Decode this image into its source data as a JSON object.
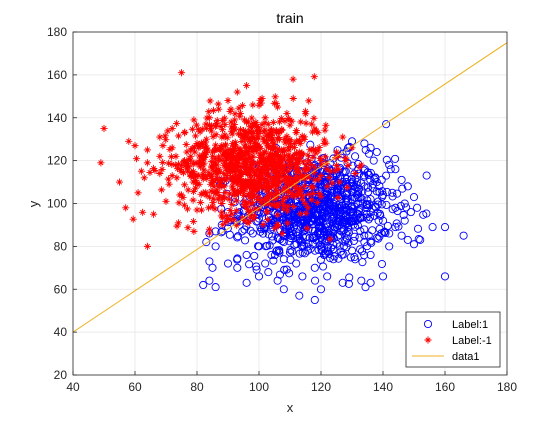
{
  "chart_data": {
    "type": "scatter",
    "title": "train",
    "xlabel": "x",
    "ylabel": "y",
    "xlim": [
      40,
      180
    ],
    "ylim": [
      20,
      180
    ],
    "x_ticks": [
      40,
      60,
      80,
      100,
      120,
      140,
      160,
      180
    ],
    "y_ticks": [
      20,
      40,
      60,
      80,
      100,
      120,
      140,
      160,
      180
    ],
    "x_tick_labels": [
      "40",
      "60",
      "80",
      "100",
      "120",
      "140",
      "160",
      "180"
    ],
    "y_tick_labels": [
      "20",
      "40",
      "60",
      "80",
      "100",
      "120",
      "140",
      "160",
      "180"
    ],
    "grid": true,
    "legend_position": "bottom-right",
    "series": [
      {
        "name": "Label:1",
        "type": "scatter",
        "marker": "circle",
        "color": "#0000ff",
        "count": 1000,
        "center": [
          118,
          97
        ],
        "spread": [
          12,
          12
        ],
        "extent": {
          "x": [
            82,
            166
          ],
          "y": [
            54,
            137
          ]
        },
        "points": [
          [
            141,
            137
          ],
          [
            130,
            129
          ],
          [
            134,
            128
          ],
          [
            136,
            126
          ],
          [
            138,
            124
          ],
          [
            131,
            122
          ],
          [
            137,
            120
          ],
          [
            142,
            118
          ],
          [
            144,
            116
          ],
          [
            141,
            113
          ],
          [
            146,
            111
          ],
          [
            148,
            108
          ],
          [
            143,
            105
          ],
          [
            150,
            103
          ],
          [
            147,
            100
          ],
          [
            151,
            98
          ],
          [
            149,
            96
          ],
          [
            147,
            92
          ],
          [
            144,
            89
          ],
          [
            142,
            86
          ],
          [
            138,
            84
          ],
          [
            146,
            85
          ],
          [
            148,
            83
          ],
          [
            150,
            81
          ],
          [
            152,
            83
          ],
          [
            156,
            89
          ],
          [
            160,
            89
          ],
          [
            166,
            85
          ],
          [
            160,
            66
          ],
          [
            99,
            109
          ],
          [
            95,
            100
          ],
          [
            90,
            96
          ],
          [
            88,
            90
          ],
          [
            86,
            87
          ],
          [
            84,
            86
          ],
          [
            83,
            82
          ],
          [
            86,
            80
          ],
          [
            84,
            73
          ],
          [
            85,
            70
          ],
          [
            90,
            72
          ],
          [
            93,
            70
          ],
          [
            84,
            64
          ],
          [
            82,
            62
          ],
          [
            86,
            61
          ],
          [
            96,
            63
          ],
          [
            103,
            68
          ],
          [
            108,
            60
          ],
          [
            113,
            57
          ],
          [
            118,
            55
          ],
          [
            120,
            60
          ],
          [
            127,
            63
          ],
          [
            133,
            64
          ],
          [
            136,
            63
          ],
          [
            140,
            66
          ],
          [
            126,
            80
          ],
          [
            121,
            76
          ],
          [
            114,
            82
          ],
          [
            108,
            86
          ],
          [
            104,
            90
          ],
          [
            100,
            93
          ],
          [
            97,
            103
          ],
          [
            112,
            112
          ],
          [
            118,
            118
          ],
          [
            124,
            121
          ],
          [
            128,
            115
          ],
          [
            122,
            110
          ],
          [
            116,
            104
          ],
          [
            110,
            100
          ],
          [
            114,
            94
          ],
          [
            120,
            92
          ],
          [
            126,
            96
          ],
          [
            132,
            100
          ],
          [
            134,
            108
          ],
          [
            128,
            104
          ],
          [
            122,
            98
          ],
          [
            116,
            88
          ],
          [
            106,
            95
          ],
          [
            102,
            105
          ],
          [
            110,
            108
          ],
          [
            124,
            88
          ],
          [
            130,
            92
          ],
          [
            136,
            96
          ],
          [
            140,
            104
          ],
          [
            138,
            110
          ],
          [
            132,
            116
          ],
          [
            126,
            108
          ],
          [
            118,
            100
          ],
          [
            112,
            96
          ],
          [
            106,
            84
          ],
          [
            100,
            80
          ],
          [
            96,
            76
          ],
          [
            104,
            76
          ],
          [
            112,
            72
          ],
          [
            118,
            70
          ],
          [
            124,
            74
          ],
          [
            130,
            78
          ],
          [
            134,
            82
          ],
          [
            128,
            86
          ],
          [
            120,
            84
          ],
          [
            114,
            80
          ],
          [
            108,
            74
          ],
          [
            102,
            72
          ],
          [
            98,
            86
          ],
          [
            94,
            92
          ],
          [
            110,
            118
          ],
          [
            116,
            112
          ],
          [
            124,
            114
          ],
          [
            130,
            110
          ],
          [
            136,
            102
          ],
          [
            140,
            92
          ],
          [
            144,
            98
          ],
          [
            142,
            80
          ],
          [
            136,
            76
          ],
          [
            122,
            66
          ],
          [
            114,
            66
          ],
          [
            106,
            64
          ],
          [
            100,
            66
          ]
        ]
      },
      {
        "name": "Label:-1",
        "type": "scatter",
        "marker": "asterisk",
        "color": "#ff0000",
        "count": 1000,
        "center": [
          98,
          118
        ],
        "spread": [
          12,
          12
        ],
        "extent": {
          "x": [
            49,
            133
          ],
          "y": [
            80,
            161
          ]
        },
        "points": [
          [
            75,
            161
          ],
          [
            111,
            158
          ],
          [
            96,
            155
          ],
          [
            93,
            152
          ],
          [
            101,
            149
          ],
          [
            90,
            148
          ],
          [
            98,
            146
          ],
          [
            106,
            145
          ],
          [
            87,
            144
          ],
          [
            94,
            142
          ],
          [
            102,
            140
          ],
          [
            110,
            139
          ],
          [
            115,
            143
          ],
          [
            84,
            140
          ],
          [
            79,
            139
          ],
          [
            91,
            138
          ],
          [
            99,
            137
          ],
          [
            86,
            136
          ],
          [
            72,
            135
          ],
          [
            50,
            135
          ],
          [
            95,
            134
          ],
          [
            104,
            134
          ],
          [
            112,
            133
          ],
          [
            119,
            133
          ],
          [
            76,
            133
          ],
          [
            68,
            131
          ],
          [
            88,
            131
          ],
          [
            97,
            130
          ],
          [
            106,
            130
          ],
          [
            113,
            129
          ],
          [
            121,
            128
          ],
          [
            80,
            128
          ],
          [
            58,
            129
          ],
          [
            60,
            127
          ],
          [
            64,
            125
          ],
          [
            72,
            126
          ],
          [
            92,
            127
          ],
          [
            100,
            126
          ],
          [
            108,
            125
          ],
          [
            117,
            125
          ],
          [
            125,
            124
          ],
          [
            85,
            124
          ],
          [
            68,
            122
          ],
          [
            78,
            122
          ],
          [
            94,
            122
          ],
          [
            103,
            121
          ],
          [
            111,
            121
          ],
          [
            120,
            120
          ],
          [
            128,
            120
          ],
          [
            89,
            120
          ],
          [
            49,
            119
          ],
          [
            64,
            119
          ],
          [
            73,
            118
          ],
          [
            82,
            118
          ],
          [
            98,
            118
          ],
          [
            107,
            117
          ],
          [
            115,
            116
          ],
          [
            123,
            115
          ],
          [
            131,
            114
          ],
          [
            92,
            115
          ],
          [
            77,
            115
          ],
          [
            68,
            114
          ],
          [
            84,
            113
          ],
          [
            101,
            113
          ],
          [
            110,
            112
          ],
          [
            118,
            111
          ],
          [
            126,
            110
          ],
          [
            96,
            110
          ],
          [
            55,
            110
          ],
          [
            71,
            109
          ],
          [
            80,
            109
          ],
          [
            88,
            108
          ],
          [
            104,
            108
          ],
          [
            113,
            107
          ],
          [
            93,
            106
          ],
          [
            61,
            105
          ],
          [
            75,
            104
          ],
          [
            84,
            103
          ],
          [
            100,
            103
          ],
          [
            109,
            103
          ],
          [
            70,
            101
          ],
          [
            88,
            100
          ],
          [
            96,
            98
          ],
          [
            57,
            98
          ],
          [
            80,
            97
          ],
          [
            66,
            95
          ],
          [
            90,
            93
          ],
          [
            74,
            91
          ],
          [
            84,
            88
          ],
          [
            79,
            87
          ],
          [
            64,
            80
          ],
          [
            133,
            118
          ],
          [
            130,
            126
          ],
          [
            127,
            131
          ],
          [
            117,
            137
          ],
          [
            109,
            142
          ],
          [
            99,
            128
          ],
          [
            91,
            124
          ],
          [
            83,
            130
          ],
          [
            76,
            120
          ],
          [
            69,
            127
          ],
          [
            63,
            112
          ],
          [
            86,
            111
          ],
          [
            95,
            107
          ],
          [
            102,
            116
          ],
          [
            116,
            120
          ],
          [
            122,
            108
          ],
          [
            114,
            102
          ],
          [
            106,
            99
          ],
          [
            97,
            95
          ],
          [
            82,
            105
          ],
          [
            72,
            113
          ],
          [
            89,
            132
          ],
          [
            103,
            137
          ],
          [
            113,
            124
          ],
          [
            120,
            113
          ],
          [
            107,
            122
          ],
          [
            93,
            119
          ],
          [
            85,
            122
          ],
          [
            78,
            125
          ],
          [
            87,
            116
          ]
        ]
      },
      {
        "name": "data1",
        "type": "line",
        "color": "#edb120",
        "x": [
          40,
          180
        ],
        "y": [
          40,
          175
        ]
      }
    ]
  }
}
